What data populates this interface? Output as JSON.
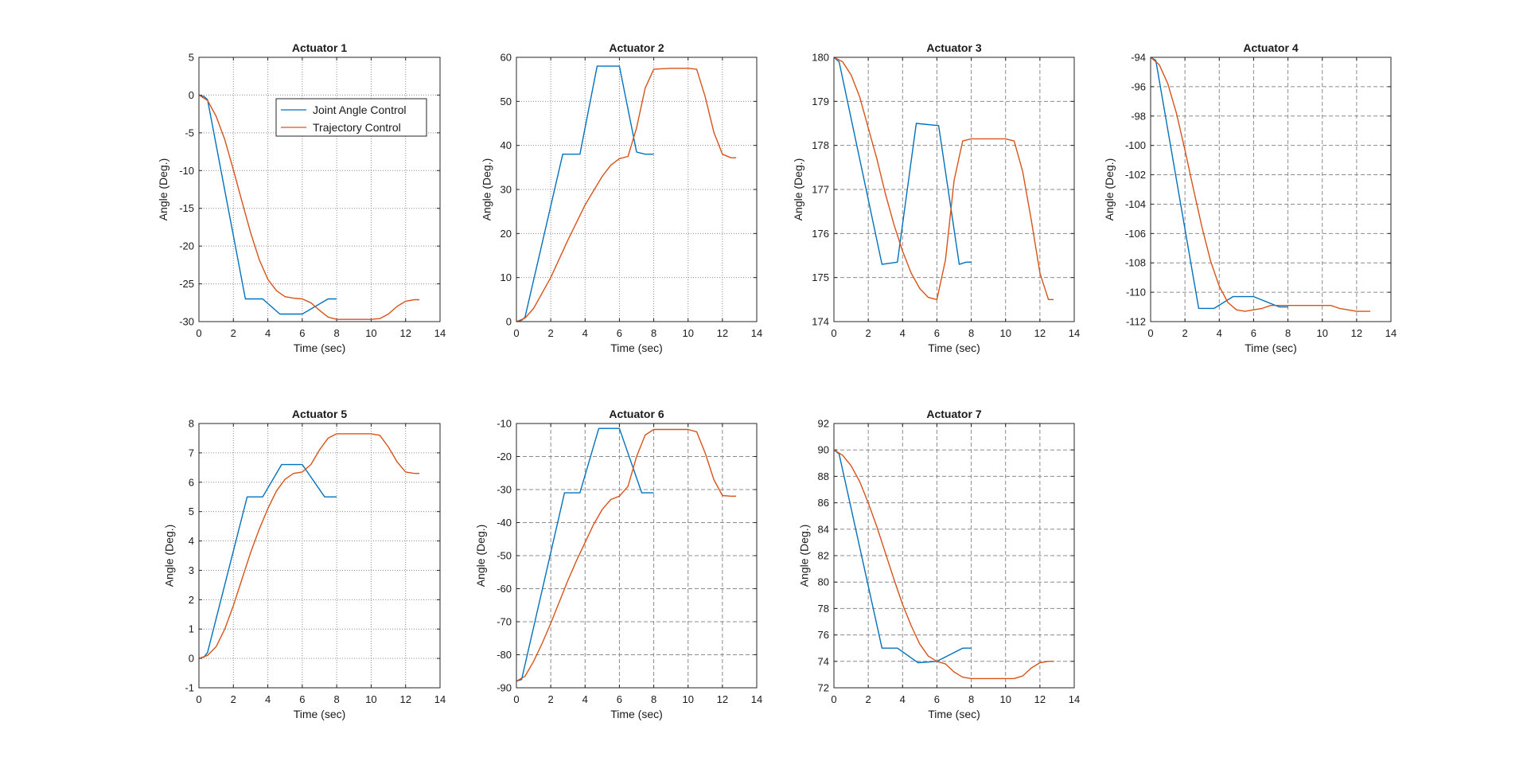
{
  "figure": {
    "background": "#ffffff"
  },
  "style": {
    "colors": {
      "joint": "#0072BD",
      "trajectory": "#D95319",
      "grid": "#8c8c8c",
      "axis": "#262626"
    }
  },
  "legend": {
    "items": [
      {
        "label": "Joint Angle Control",
        "color": "#0072BD"
      },
      {
        "label": "Trajectory Control",
        "color": "#D95319"
      }
    ],
    "location": "top-right of subplot 1"
  },
  "chart_data": [
    {
      "type": "line",
      "title": "Actuator 1",
      "xlabel": "Time (sec)",
      "ylabel": "Angle (Deg.)",
      "xlim": [
        0,
        14
      ],
      "ylim": [
        -30,
        5
      ],
      "xticks": [
        "0",
        "2",
        "4",
        "6",
        "8",
        "10",
        "12",
        "14"
      ],
      "yticks": [
        "-30",
        "-25",
        "-20",
        "-15",
        "-10",
        "-5",
        "0",
        "5"
      ],
      "grid": "dotted",
      "series": [
        {
          "name": "Joint Angle Control",
          "x": [
            0,
            0.3,
            0.5,
            2.7,
            3.7,
            4.7,
            6,
            7.5,
            8
          ],
          "y": [
            0,
            -0.2,
            -0.6,
            -27,
            -27,
            -29,
            -29,
            -27,
            -27
          ]
        },
        {
          "name": "Trajectory Control",
          "x": [
            0,
            0.5,
            1,
            1.5,
            2,
            2.5,
            3,
            3.5,
            4,
            4.5,
            5,
            5.5,
            6,
            6.5,
            7,
            7.5,
            8,
            9,
            10,
            10.5,
            11,
            11.5,
            12,
            12.5,
            12.8
          ],
          "y": [
            0,
            -0.7,
            -2.8,
            -5.9,
            -9.9,
            -14.1,
            -18.2,
            -21.8,
            -24.4,
            -25.9,
            -26.7,
            -26.9,
            -27,
            -27.5,
            -28.5,
            -29.4,
            -29.7,
            -29.7,
            -29.7,
            -29.6,
            -29,
            -28,
            -27.3,
            -27.1,
            -27.1
          ]
        }
      ]
    },
    {
      "type": "line",
      "title": "Actuator 2",
      "xlabel": "Time (sec)",
      "ylabel": "Angle (Deg.)",
      "xlim": [
        0,
        14
      ],
      "ylim": [
        0,
        60
      ],
      "xticks": [
        "0",
        "2",
        "4",
        "6",
        "8",
        "10",
        "12",
        "14"
      ],
      "yticks": [
        "0",
        "10",
        "20",
        "30",
        "40",
        "50",
        "60"
      ],
      "grid": "dotted",
      "series": [
        {
          "name": "Joint Angle Control",
          "x": [
            0,
            0.3,
            0.5,
            2.7,
            3.7,
            4.7,
            6,
            7,
            7.5,
            8
          ],
          "y": [
            0,
            0.3,
            1,
            38,
            38,
            58,
            58,
            38.5,
            38,
            38
          ]
        },
        {
          "name": "Trajectory Control",
          "x": [
            0,
            0.5,
            1,
            2,
            3,
            4,
            5,
            5.5,
            6,
            6.5,
            7,
            7.5,
            8,
            9,
            10,
            10.5,
            11,
            11.5,
            12,
            12.5,
            12.8
          ],
          "y": [
            0,
            0.8,
            3,
            10,
            18.5,
            26.5,
            33,
            35.5,
            37,
            37.5,
            44,
            53,
            57.3,
            57.5,
            57.5,
            57.3,
            51,
            43,
            38,
            37.2,
            37.2
          ]
        }
      ]
    },
    {
      "type": "line",
      "title": "Actuator 3",
      "xlabel": "Time (sec)",
      "ylabel": "Angle (Deg.)",
      "xlim": [
        0,
        14
      ],
      "ylim": [
        174,
        180
      ],
      "xticks": [
        "0",
        "2",
        "4",
        "6",
        "8",
        "10",
        "12",
        "14"
      ],
      "yticks": [
        "174",
        "175",
        "176",
        "177",
        "178",
        "179",
        "180"
      ],
      "grid": "dashed",
      "series": [
        {
          "name": "Joint Angle Control",
          "x": [
            0,
            0.3,
            2.8,
            3.7,
            4.8,
            6.1,
            7.3,
            7.7,
            8
          ],
          "y": [
            180,
            179.9,
            175.3,
            175.35,
            178.5,
            178.45,
            175.3,
            175.35,
            175.35
          ]
        },
        {
          "name": "Trajectory Control",
          "x": [
            0,
            0.5,
            1,
            1.5,
            2,
            2.5,
            3,
            3.5,
            4,
            4.5,
            5,
            5.5,
            6,
            6.5,
            7,
            7.5,
            8,
            9,
            10,
            10.5,
            11,
            11.5,
            12,
            12.5,
            12.8
          ],
          "y": [
            180,
            179.9,
            179.6,
            179.1,
            178.4,
            177.7,
            176.9,
            176.2,
            175.6,
            175.1,
            174.75,
            174.55,
            174.5,
            175.4,
            177.2,
            178.1,
            178.15,
            178.15,
            178.15,
            178.1,
            177.4,
            176.3,
            175.1,
            174.5,
            174.5
          ]
        }
      ]
    },
    {
      "type": "line",
      "title": "Actuator 4",
      "xlabel": "Time (sec)",
      "ylabel": "Angle (Deg.)",
      "xlim": [
        0,
        14
      ],
      "ylim": [
        -112,
        -94
      ],
      "xticks": [
        "0",
        "2",
        "4",
        "6",
        "8",
        "10",
        "12",
        "14"
      ],
      "yticks": [
        "-112",
        "-110",
        "-108",
        "-106",
        "-104",
        "-102",
        "-100",
        "-98",
        "-96",
        "-94"
      ],
      "grid": "dashed",
      "series": [
        {
          "name": "Joint Angle Control",
          "x": [
            0,
            0.3,
            2.8,
            3.7,
            4.8,
            6,
            7.5,
            8
          ],
          "y": [
            -94,
            -94.2,
            -111.1,
            -111.1,
            -110.3,
            -110.3,
            -111,
            -111
          ]
        },
        {
          "name": "Trajectory Control",
          "x": [
            0,
            0.5,
            1,
            1.5,
            2,
            2.5,
            3,
            3.5,
            4,
            4.5,
            5,
            5.5,
            6,
            6.5,
            7,
            8,
            9,
            10,
            10.5,
            11,
            12,
            12.8
          ],
          "y": [
            -94,
            -94.5,
            -95.8,
            -97.8,
            -100.3,
            -103,
            -105.6,
            -107.9,
            -109.6,
            -110.7,
            -111.2,
            -111.3,
            -111.2,
            -111.1,
            -110.9,
            -110.9,
            -110.9,
            -110.9,
            -110.9,
            -111.1,
            -111.3,
            -111.3
          ]
        }
      ]
    },
    {
      "type": "line",
      "title": "Actuator 5",
      "xlabel": "Time (sec)",
      "ylabel": "Angle (Deg.)",
      "xlim": [
        0,
        14
      ],
      "ylim": [
        -1,
        8
      ],
      "xticks": [
        "0",
        "2",
        "4",
        "6",
        "8",
        "10",
        "12",
        "14"
      ],
      "yticks": [
        "-1",
        "0",
        "1",
        "2",
        "3",
        "4",
        "5",
        "6",
        "7",
        "8"
      ],
      "grid": "dotted",
      "series": [
        {
          "name": "Joint Angle Control",
          "x": [
            0,
            0.3,
            0.5,
            2.8,
            3.7,
            4.8,
            6,
            7.3,
            7.7,
            8
          ],
          "y": [
            0,
            0.05,
            0.2,
            5.5,
            5.5,
            6.6,
            6.6,
            5.5,
            5.5,
            5.5
          ]
        },
        {
          "name": "Trajectory Control",
          "x": [
            0,
            0.5,
            1,
            1.5,
            2,
            2.5,
            3,
            3.5,
            4,
            4.5,
            5,
            5.5,
            6,
            6.5,
            7,
            7.5,
            8,
            9,
            10,
            10.5,
            11,
            11.5,
            12,
            12.5,
            12.8
          ],
          "y": [
            0,
            0.1,
            0.4,
            1,
            1.8,
            2.7,
            3.6,
            4.4,
            5.1,
            5.7,
            6.1,
            6.3,
            6.35,
            6.6,
            7.1,
            7.5,
            7.65,
            7.65,
            7.65,
            7.6,
            7.2,
            6.7,
            6.35,
            6.3,
            6.3
          ]
        }
      ]
    },
    {
      "type": "line",
      "title": "Actuator 6",
      "xlabel": "Time (sec)",
      "ylabel": "Angle (Deg.)",
      "xlim": [
        0,
        14
      ],
      "ylim": [
        -90,
        -10
      ],
      "xticks": [
        "0",
        "2",
        "4",
        "6",
        "8",
        "10",
        "12",
        "14"
      ],
      "yticks": [
        "-90",
        "-80",
        "-70",
        "-60",
        "-50",
        "-40",
        "-30",
        "-20",
        "-10"
      ],
      "grid": "dashed",
      "series": [
        {
          "name": "Joint Angle Control",
          "x": [
            0,
            0.3,
            2.8,
            3.7,
            4.8,
            6,
            7.3,
            8
          ],
          "y": [
            -88,
            -87.5,
            -31,
            -31,
            -11.5,
            -11.5,
            -31,
            -31
          ]
        },
        {
          "name": "Trajectory Control",
          "x": [
            0,
            0.5,
            1,
            1.5,
            2,
            2.5,
            3,
            3.5,
            4,
            4.5,
            5,
            5.5,
            6,
            6.5,
            7,
            7.5,
            8,
            9,
            10,
            10.5,
            11,
            11.5,
            12,
            12.5,
            12.8
          ],
          "y": [
            -88,
            -86.5,
            -82,
            -76.5,
            -70.5,
            -64,
            -57.5,
            -51.5,
            -46,
            -40.5,
            -36,
            -33,
            -32,
            -29,
            -20,
            -13.5,
            -11.8,
            -11.8,
            -11.8,
            -12.5,
            -19,
            -27,
            -31.8,
            -32,
            -32
          ]
        }
      ]
    },
    {
      "type": "line",
      "title": "Actuator 7",
      "xlabel": "Time (sec)",
      "ylabel": "Angle (Deg.)",
      "xlim": [
        0,
        14
      ],
      "ylim": [
        72,
        92
      ],
      "xticks": [
        "0",
        "2",
        "4",
        "6",
        "8",
        "10",
        "12",
        "14"
      ],
      "yticks": [
        "72",
        "74",
        "76",
        "78",
        "80",
        "82",
        "84",
        "86",
        "88",
        "90",
        "92"
      ],
      "grid": "dashed",
      "series": [
        {
          "name": "Joint Angle Control",
          "x": [
            0,
            0.3,
            2.8,
            3.7,
            4.9,
            6,
            7.5,
            8
          ],
          "y": [
            90,
            89.7,
            75,
            75,
            73.9,
            74,
            75,
            75
          ]
        },
        {
          "name": "Trajectory Control",
          "x": [
            0,
            0.5,
            1,
            1.5,
            2,
            2.5,
            3,
            3.5,
            4,
            4.5,
            5,
            5.5,
            6,
            6.5,
            7,
            7.5,
            8,
            9,
            10,
            10.5,
            11,
            11.5,
            12,
            12.5,
            12.8
          ],
          "y": [
            90,
            89.6,
            88.8,
            87.6,
            86,
            84.2,
            82.2,
            80.2,
            78.3,
            76.7,
            75.3,
            74.4,
            74,
            73.8,
            73.2,
            72.8,
            72.7,
            72.7,
            72.7,
            72.7,
            72.9,
            73.5,
            73.9,
            74,
            74
          ]
        }
      ]
    }
  ]
}
